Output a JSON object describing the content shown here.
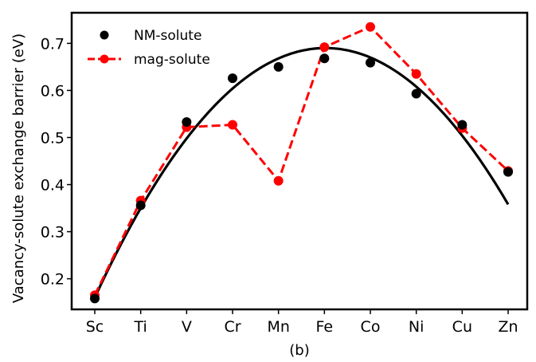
{
  "chart_data": {
    "type": "scatter",
    "categories": [
      "Sc",
      "Ti",
      "V",
      "Cr",
      "Mn",
      "Fe",
      "Co",
      "Ni",
      "Cu",
      "Zn"
    ],
    "xlabel": "(b)",
    "ylabel": "Vacancy-solute exchange barrier (eV)",
    "ylim": [
      0.135,
      0.765
    ],
    "yticks": [
      "0.2",
      "0.3",
      "0.4",
      "0.5",
      "0.6",
      "0.7"
    ],
    "grid": false,
    "legend_position": "top-left",
    "series": [
      {
        "name": "NM-solute",
        "style": "markers",
        "color": "#000000",
        "values": [
          0.158,
          0.356,
          0.533,
          0.626,
          0.65,
          0.668,
          0.659,
          0.593,
          0.527,
          0.427
        ]
      },
      {
        "name": "mag-solute",
        "style": "dashed-line-markers",
        "color": "#ff0000",
        "values": [
          0.165,
          0.366,
          0.522,
          0.527,
          0.408,
          0.692,
          0.735,
          0.635,
          0.52,
          0.429
        ]
      },
      {
        "style": "solid-fit-curve",
        "color": "#000000",
        "fit": {
          "a": -0.021,
          "b": 0.211,
          "c": 0.16
        }
      }
    ]
  }
}
